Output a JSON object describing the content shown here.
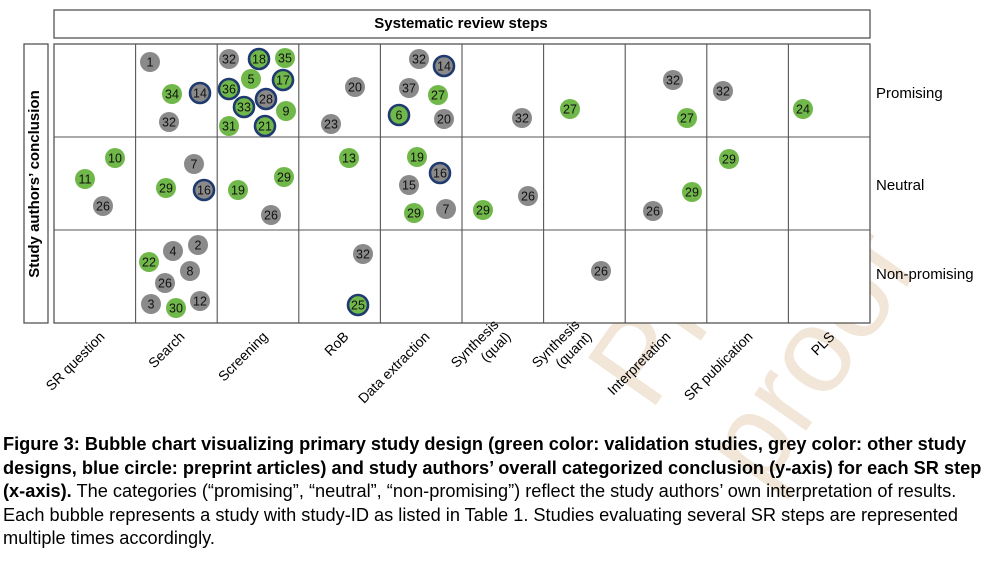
{
  "chart_data": {
    "type": "scatter",
    "title": "Systematic review steps",
    "ylabel": "Study authors’ conclusion",
    "columns": [
      "SR question",
      "Search",
      "Screening",
      "RoB",
      "Data extraction",
      "Synthesis\n(qual)",
      "Synthesis\n(quant)",
      "Interpretation",
      "SR publication",
      "PLS"
    ],
    "rows": [
      "Promising",
      "Neutral",
      "Non-promising"
    ],
    "legend": {
      "green": "validation studies",
      "grey": "other study designs",
      "blue_ring": "preprint articles"
    },
    "colors": {
      "green": "#71b84a",
      "grey": "#8a8a8a",
      "blue_ring": "#1f3a6e",
      "frame": "#555555"
    },
    "bubbles": [
      {
        "id": "1",
        "col": "Search",
        "row": "Promising",
        "type": "grey",
        "preprint": false
      },
      {
        "id": "34",
        "col": "Search",
        "row": "Promising",
        "type": "green",
        "preprint": false
      },
      {
        "id": "14",
        "col": "Search",
        "row": "Promising",
        "type": "grey",
        "preprint": true
      },
      {
        "id": "32",
        "col": "Search",
        "row": "Promising",
        "type": "grey",
        "preprint": false
      },
      {
        "id": "32",
        "col": "Screening",
        "row": "Promising",
        "type": "grey",
        "preprint": false
      },
      {
        "id": "18",
        "col": "Screening",
        "row": "Promising",
        "type": "green",
        "preprint": true
      },
      {
        "id": "35",
        "col": "Screening",
        "row": "Promising",
        "type": "green",
        "preprint": false
      },
      {
        "id": "5",
        "col": "Screening",
        "row": "Promising",
        "type": "green",
        "preprint": false
      },
      {
        "id": "17",
        "col": "Screening",
        "row": "Promising",
        "type": "green",
        "preprint": true
      },
      {
        "id": "36",
        "col": "Screening",
        "row": "Promising",
        "type": "green",
        "preprint": true
      },
      {
        "id": "28",
        "col": "Screening",
        "row": "Promising",
        "type": "grey",
        "preprint": true
      },
      {
        "id": "33",
        "col": "Screening",
        "row": "Promising",
        "type": "green",
        "preprint": true
      },
      {
        "id": "9",
        "col": "Screening",
        "row": "Promising",
        "type": "green",
        "preprint": false
      },
      {
        "id": "31",
        "col": "Screening",
        "row": "Promising",
        "type": "green",
        "preprint": false
      },
      {
        "id": "21",
        "col": "Screening",
        "row": "Promising",
        "type": "green",
        "preprint": true
      },
      {
        "id": "20",
        "col": "RoB",
        "row": "Promising",
        "type": "grey",
        "preprint": false
      },
      {
        "id": "23",
        "col": "RoB",
        "row": "Promising",
        "type": "grey",
        "preprint": false
      },
      {
        "id": "32",
        "col": "Data extraction",
        "row": "Promising",
        "type": "grey",
        "preprint": false
      },
      {
        "id": "14",
        "col": "Data extraction",
        "row": "Promising",
        "type": "grey",
        "preprint": true
      },
      {
        "id": "37",
        "col": "Data extraction",
        "row": "Promising",
        "type": "grey",
        "preprint": false
      },
      {
        "id": "27",
        "col": "Data extraction",
        "row": "Promising",
        "type": "green",
        "preprint": false
      },
      {
        "id": "6",
        "col": "Data extraction",
        "row": "Promising",
        "type": "green",
        "preprint": true
      },
      {
        "id": "20",
        "col": "Data extraction",
        "row": "Promising",
        "type": "grey",
        "preprint": false
      },
      {
        "id": "32",
        "col": "Synthesis (qual)",
        "row": "Promising",
        "type": "grey",
        "preprint": false
      },
      {
        "id": "27",
        "col": "Synthesis (quant)",
        "row": "Promising",
        "type": "green",
        "preprint": false
      },
      {
        "id": "32",
        "col": "Interpretation",
        "row": "Promising",
        "type": "grey",
        "preprint": false
      },
      {
        "id": "27",
        "col": "Interpretation",
        "row": "Promising",
        "type": "green",
        "preprint": false
      },
      {
        "id": "32",
        "col": "SR publication",
        "row": "Promising",
        "type": "grey",
        "preprint": false
      },
      {
        "id": "24",
        "col": "PLS",
        "row": "Promising",
        "type": "green",
        "preprint": false
      },
      {
        "id": "10",
        "col": "SR question",
        "row": "Neutral",
        "type": "green",
        "preprint": false
      },
      {
        "id": "11",
        "col": "SR question",
        "row": "Neutral",
        "type": "green",
        "preprint": false
      },
      {
        "id": "26",
        "col": "SR question",
        "row": "Neutral",
        "type": "grey",
        "preprint": false
      },
      {
        "id": "7",
        "col": "Search",
        "row": "Neutral",
        "type": "grey",
        "preprint": false
      },
      {
        "id": "29",
        "col": "Search",
        "row": "Neutral",
        "type": "green",
        "preprint": false
      },
      {
        "id": "16",
        "col": "Search",
        "row": "Neutral",
        "type": "grey",
        "preprint": true
      },
      {
        "id": "19",
        "col": "Screening",
        "row": "Neutral",
        "type": "green",
        "preprint": false
      },
      {
        "id": "29",
        "col": "Screening",
        "row": "Neutral",
        "type": "green",
        "preprint": false
      },
      {
        "id": "26",
        "col": "Screening",
        "row": "Neutral",
        "type": "grey",
        "preprint": false
      },
      {
        "id": "13",
        "col": "RoB",
        "row": "Neutral",
        "type": "green",
        "preprint": false
      },
      {
        "id": "19",
        "col": "Data extraction",
        "row": "Neutral",
        "type": "green",
        "preprint": false
      },
      {
        "id": "15",
        "col": "Data extraction",
        "row": "Neutral",
        "type": "grey",
        "preprint": false
      },
      {
        "id": "16",
        "col": "Data extraction",
        "row": "Neutral",
        "type": "grey",
        "preprint": true
      },
      {
        "id": "29",
        "col": "Data extraction",
        "row": "Neutral",
        "type": "green",
        "preprint": false
      },
      {
        "id": "7",
        "col": "Data extraction",
        "row": "Neutral",
        "type": "grey",
        "preprint": false
      },
      {
        "id": "29",
        "col": "Synthesis (qual)",
        "row": "Neutral",
        "type": "green",
        "preprint": false
      },
      {
        "id": "26",
        "col": "Synthesis (qual)",
        "row": "Neutral",
        "type": "grey",
        "preprint": false
      },
      {
        "id": "29",
        "col": "Interpretation",
        "row": "Neutral",
        "type": "green",
        "preprint": false
      },
      {
        "id": "26",
        "col": "Interpretation",
        "row": "Neutral",
        "type": "grey",
        "preprint": false
      },
      {
        "id": "29",
        "col": "SR publication",
        "row": "Neutral",
        "type": "green",
        "preprint": false
      },
      {
        "id": "4",
        "col": "Search",
        "row": "Non-promising",
        "type": "grey",
        "preprint": false
      },
      {
        "id": "2",
        "col": "Search",
        "row": "Non-promising",
        "type": "grey",
        "preprint": false
      },
      {
        "id": "22",
        "col": "Search",
        "row": "Non-promising",
        "type": "green",
        "preprint": false
      },
      {
        "id": "8",
        "col": "Search",
        "row": "Non-promising",
        "type": "grey",
        "preprint": false
      },
      {
        "id": "26",
        "col": "Search",
        "row": "Non-promising",
        "type": "grey",
        "preprint": false
      },
      {
        "id": "3",
        "col": "Search",
        "row": "Non-promising",
        "type": "grey",
        "preprint": false
      },
      {
        "id": "30",
        "col": "Search",
        "row": "Non-promising",
        "type": "green",
        "preprint": false
      },
      {
        "id": "12",
        "col": "Search",
        "row": "Non-promising",
        "type": "grey",
        "preprint": false
      },
      {
        "id": "32",
        "col": "RoB",
        "row": "Non-promising",
        "type": "grey",
        "preprint": false
      },
      {
        "id": "25",
        "col": "RoB",
        "row": "Non-promising",
        "type": "green",
        "preprint": true
      },
      {
        "id": "26",
        "col": "Synthesis (quant)",
        "row": "Non-promising",
        "type": "grey",
        "preprint": false
      }
    ]
  },
  "caption": {
    "bold": "Figure 3: Bubble chart visualizing primary study design (green color: validation studies, grey color: other study designs, blue circle: preprint articles) and study authors’ overall categorized conclusion (y-axis) for each SR step (x-axis).",
    "rest": " The categories (“promising”, “neutral”, “non-promising”) reflect the study authors’ own interpretation of results. Each bubble represents a study with study-ID as listed in Table 1. Studies evaluating several SR steps are represented multiple times accordingly."
  },
  "watermark": "Pre-proof"
}
